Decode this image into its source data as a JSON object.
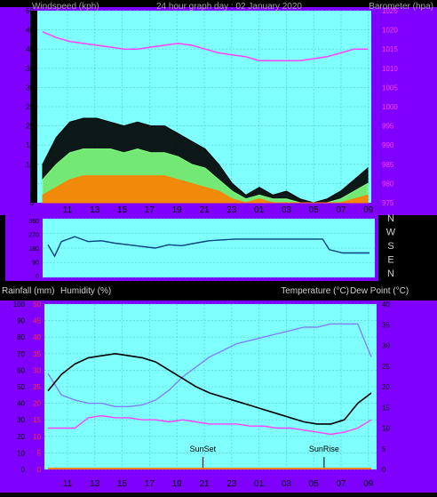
{
  "header": {
    "windspeed_label": "Windspeed (kph)",
    "title": "24 hour graph day : 02 January 2020",
    "barometer_label": "Barometer (hpa)"
  },
  "lower_header": {
    "rainfall_label": "Rainfall (mm)",
    "humidity_label": "Humidity (%)",
    "temperature_label": "Temperature (°C)",
    "dewpoint_label": "Dew Point (°C)"
  },
  "time_ticks": [
    "11",
    "13",
    "15",
    "17",
    "19",
    "21",
    "23",
    "01",
    "03",
    "05",
    "07",
    "09"
  ],
  "direction_labels": [
    "N",
    "W",
    "S",
    "E",
    "N"
  ],
  "direction_scale": [
    "360",
    "270",
    "180",
    "90",
    "0"
  ],
  "markers": {
    "sunset": "SunSet",
    "sunrise": "SunRise"
  },
  "colors": {
    "panel_bg": "#80ffff",
    "frame": "#8000ff",
    "gust": "#000000",
    "avg_wind": "#80ff80",
    "wind_low": "#ff8000",
    "barometer": "#ff40ff",
    "direction": "#004080",
    "temperature": "#000000",
    "dewpoint": "#ff40ff",
    "humidity": "#8080ff",
    "rain": "#ff8000"
  },
  "chart_data": [
    {
      "type": "line",
      "title": "24 hour graph day : 02 January 2020",
      "left_axis": "Windspeed (kph)",
      "right_axis": "Barometer (hpa)",
      "x_ticks": [
        "11",
        "13",
        "15",
        "17",
        "19",
        "21",
        "23",
        "01",
        "03",
        "05",
        "07",
        "09"
      ],
      "ylim_left": [
        0,
        50
      ],
      "ylim_right": [
        975,
        1025
      ],
      "y_ticks_left": [
        0,
        5,
        10,
        15,
        20,
        25,
        30,
        35,
        40,
        45,
        50
      ],
      "y_ticks_right": [
        975,
        980,
        985,
        990,
        995,
        1000,
        1005,
        1010,
        1015,
        1020,
        1025
      ],
      "hours": [
        0,
        1,
        2,
        3,
        4,
        5,
        6,
        7,
        8,
        9,
        10,
        11,
        12,
        13,
        14,
        15,
        16,
        17,
        18,
        19,
        20,
        21,
        22,
        23,
        24
      ],
      "gust_kph": [
        10,
        17,
        21,
        22,
        22,
        21,
        20,
        21,
        20,
        20,
        18,
        16,
        14,
        10,
        5,
        2,
        4,
        2,
        3,
        1,
        0,
        1,
        3,
        6,
        9
      ],
      "avg_kph": [
        6,
        10,
        13,
        14,
        14,
        14,
        13,
        14,
        13,
        13,
        12,
        10,
        9,
        6,
        3,
        1,
        2,
        1,
        1,
        0,
        0,
        0,
        1,
        3,
        5
      ],
      "low_kph": [
        2,
        4,
        6,
        7,
        7,
        7,
        7,
        7,
        7,
        7,
        6,
        5,
        4,
        3,
        1,
        0,
        1,
        0,
        0,
        0,
        0,
        0,
        0,
        1,
        2
      ],
      "barometer_hpa": [
        1019.5,
        1018,
        1017,
        1016.5,
        1016,
        1015.5,
        1015,
        1015,
        1015.5,
        1016,
        1016.5,
        1016,
        1015,
        1014,
        1013.5,
        1013,
        1012,
        1012,
        1012,
        1012,
        1012.5,
        1013,
        1014,
        1015,
        1015
      ]
    },
    {
      "type": "line",
      "title": "",
      "ylim": [
        0,
        360
      ],
      "y_ticks": [
        0,
        90,
        180,
        270,
        360
      ],
      "hours": [
        0,
        0.5,
        1,
        2,
        3,
        4,
        5,
        6,
        7,
        8,
        9,
        10,
        11,
        12,
        13,
        14,
        15,
        16,
        17,
        18,
        19,
        19.5,
        20,
        20.5,
        21,
        22,
        23,
        24
      ],
      "direction_deg": [
        200,
        130,
        220,
        250,
        220,
        225,
        210,
        200,
        190,
        180,
        200,
        195,
        210,
        225,
        230,
        235,
        235,
        235,
        235,
        235,
        235,
        235,
        235,
        235,
        170,
        150,
        150,
        150
      ]
    },
    {
      "type": "line",
      "title": "",
      "left_axis": "Humidity (%)",
      "right_axis": "Temperature (°C)",
      "ylim_left": [
        0,
        100
      ],
      "ylim_right": [
        0,
        40
      ],
      "y_ticks_left": [
        0,
        10,
        20,
        30,
        40,
        50,
        60,
        70,
        80,
        90,
        100
      ],
      "y_ticks_right": [
        0,
        5,
        10,
        15,
        20,
        25,
        30,
        35,
        40
      ],
      "rain_scale_ticks": [
        0,
        5,
        10,
        15,
        20,
        25,
        30,
        35,
        40,
        45,
        50
      ],
      "hours": [
        0,
        1,
        2,
        3,
        4,
        5,
        6,
        7,
        8,
        9,
        10,
        11,
        12,
        13,
        14,
        15,
        16,
        17,
        18,
        19,
        20,
        21,
        22,
        23,
        24
      ],
      "temperature_c": [
        19,
        23,
        25.5,
        27,
        27.5,
        28,
        27.5,
        27,
        26,
        24,
        22,
        20,
        18.5,
        17.5,
        16.5,
        15.5,
        14.5,
        13.5,
        12.5,
        11.5,
        11,
        11,
        12,
        16,
        18.5
      ],
      "dewpoint_c": [
        10,
        10,
        10,
        12.5,
        13,
        12.5,
        12.5,
        12,
        12,
        11.5,
        12,
        11.5,
        11,
        11,
        11,
        10.5,
        10.5,
        10,
        10,
        9.5,
        9,
        8.5,
        9,
        10,
        12
      ],
      "humidity_pct": [
        58,
        45,
        42,
        40,
        40,
        38,
        38,
        39,
        42,
        48,
        56,
        62,
        68,
        72,
        76,
        78,
        80,
        82,
        84,
        86,
        86,
        88,
        88,
        88,
        68
      ],
      "rain_mm": [
        0,
        0,
        0,
        0,
        0,
        0,
        0,
        0,
        0,
        0,
        0,
        0,
        0,
        0,
        0,
        0,
        0,
        0,
        0,
        0,
        0,
        0,
        0,
        0,
        0
      ],
      "markers": [
        {
          "label": "SunSet",
          "hour": 11.5
        },
        {
          "label": "SunRise",
          "hour": 20.5
        }
      ]
    }
  ]
}
